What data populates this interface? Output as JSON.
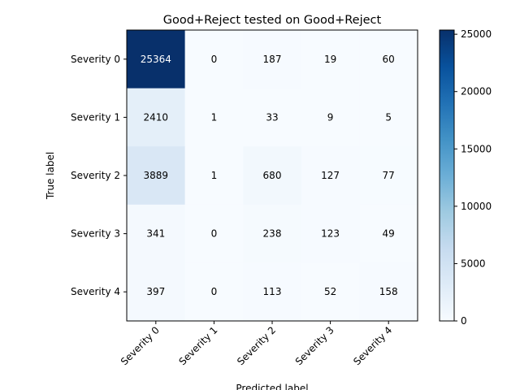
{
  "chart_data": {
    "type": "heatmap",
    "title": "Good+Reject tested on Good+Reject",
    "xlabel": "Predicted label",
    "ylabel": "True label",
    "x_categories": [
      "Severity 0",
      "Severity 1",
      "Severity 2",
      "Severity 3",
      "Severity 4"
    ],
    "y_categories": [
      "Severity 0",
      "Severity 1",
      "Severity 2",
      "Severity 3",
      "Severity 4"
    ],
    "matrix": [
      [
        25364,
        0,
        187,
        19,
        60
      ],
      [
        2410,
        1,
        33,
        9,
        5
      ],
      [
        3889,
        1,
        680,
        127,
        77
      ],
      [
        341,
        0,
        238,
        123,
        49
      ],
      [
        397,
        0,
        113,
        52,
        158
      ]
    ],
    "colormap": "Blues",
    "colorbar": {
      "range": [
        0,
        25364
      ],
      "ticks": [
        0,
        5000,
        10000,
        15000,
        20000,
        25000
      ]
    }
  }
}
